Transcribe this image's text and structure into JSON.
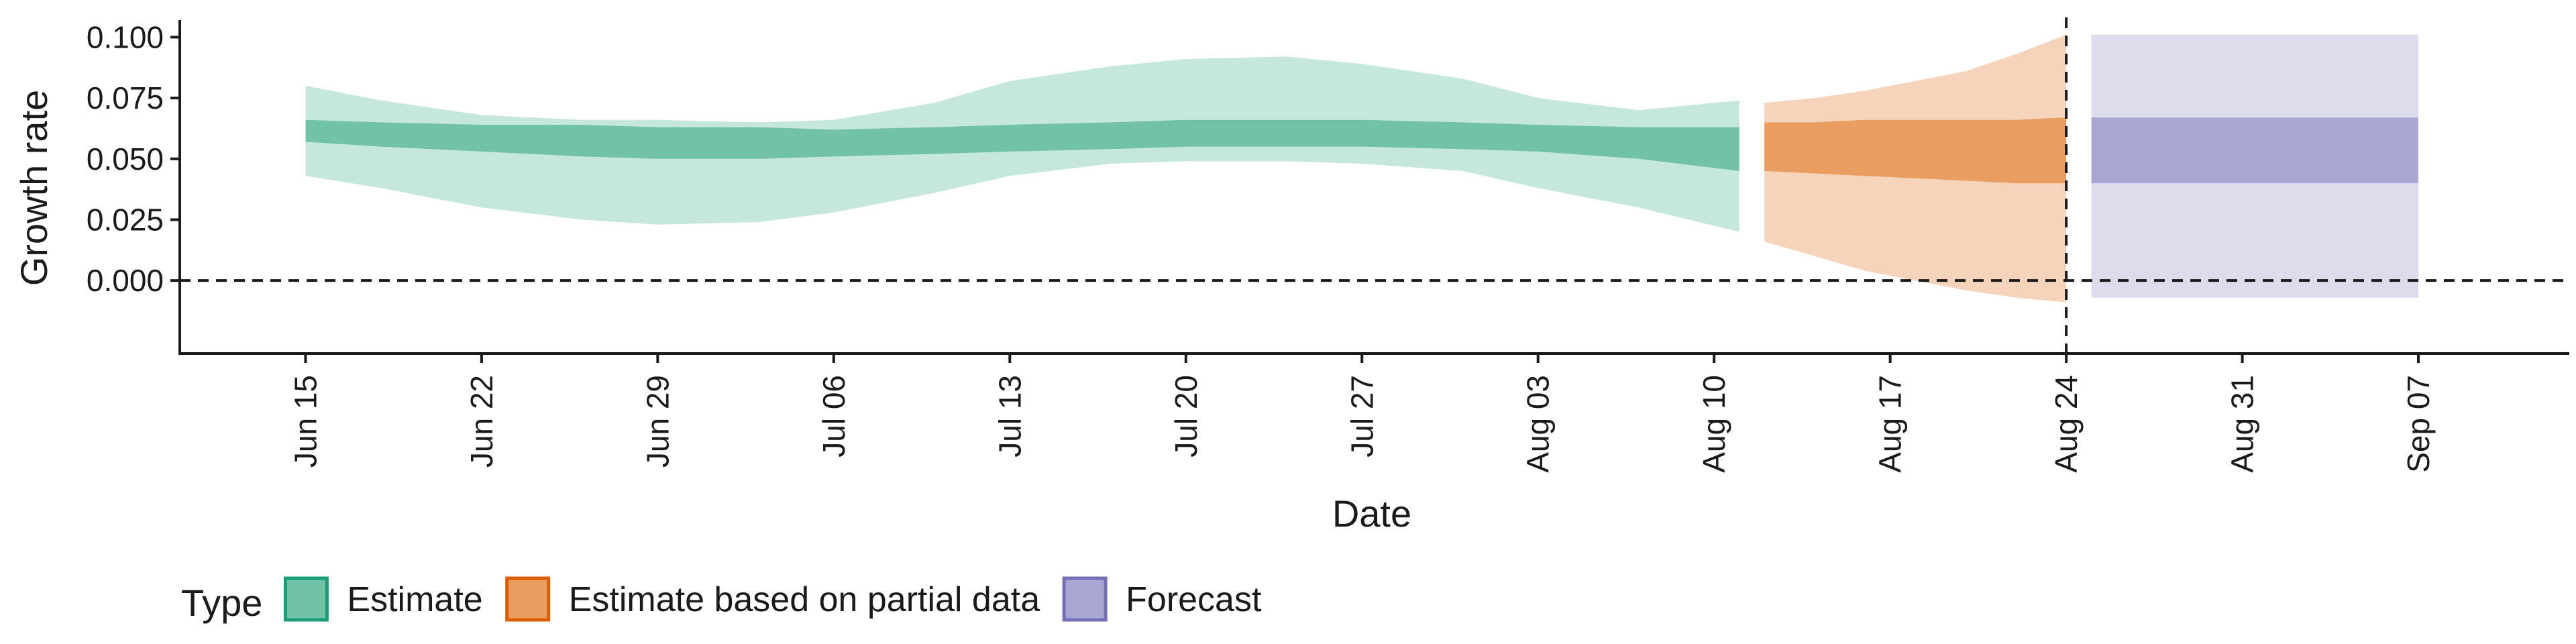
{
  "chart_data": {
    "type": "area",
    "xlabel": "Date",
    "ylabel": "Growth rate",
    "ylim": [
      -0.03,
      0.107
    ],
    "xlim": [
      "2023-06-10",
      "2023-09-13"
    ],
    "x_tick_labels": [
      "Jun 15",
      "Jun 22",
      "Jun 29",
      "Jul 06",
      "Jul 13",
      "Jul 20",
      "Jul 27",
      "Aug 03",
      "Aug 10",
      "Aug 17",
      "Aug 24",
      "Aug 31",
      "Sep 07"
    ],
    "x_ticks": [
      "2023-06-15",
      "2023-06-22",
      "2023-06-29",
      "2023-07-06",
      "2023-07-13",
      "2023-07-20",
      "2023-07-27",
      "2023-08-03",
      "2023-08-10",
      "2023-08-17",
      "2023-08-24",
      "2023-08-31",
      "2023-09-07"
    ],
    "y_ticks": [
      0.0,
      0.025,
      0.05,
      0.075,
      0.1
    ],
    "y_tick_labels": [
      "0.000",
      "0.025",
      "0.050",
      "0.075",
      "0.100"
    ],
    "reference_lines": {
      "horizontal_y": 0.0,
      "vertical_date": "2023-08-24",
      "style": "dashed"
    },
    "legend": {
      "title": "Type",
      "position": "bottom-left"
    },
    "series": [
      {
        "name": "Estimate",
        "color_inner": "#72c2a8",
        "color_outer": "#c5e7dc",
        "dates": [
          "2023-06-15",
          "2023-06-18",
          "2023-06-22",
          "2023-06-26",
          "2023-06-29",
          "2023-07-03",
          "2023-07-06",
          "2023-07-10",
          "2023-07-13",
          "2023-07-17",
          "2023-07-20",
          "2023-07-24",
          "2023-07-27",
          "2023-07-31",
          "2023-08-03",
          "2023-08-07",
          "2023-08-11"
        ],
        "outer_upper": [
          0.08,
          0.074,
          0.068,
          0.066,
          0.066,
          0.065,
          0.066,
          0.073,
          0.082,
          0.088,
          0.091,
          0.092,
          0.089,
          0.083,
          0.075,
          0.07,
          0.074
        ],
        "inner_upper": [
          0.066,
          0.065,
          0.064,
          0.064,
          0.063,
          0.063,
          0.062,
          0.063,
          0.064,
          0.065,
          0.066,
          0.066,
          0.066,
          0.065,
          0.064,
          0.063,
          0.063
        ],
        "inner_lower": [
          0.057,
          0.055,
          0.053,
          0.051,
          0.05,
          0.05,
          0.051,
          0.052,
          0.053,
          0.054,
          0.055,
          0.055,
          0.055,
          0.054,
          0.053,
          0.05,
          0.045
        ],
        "outer_lower": [
          0.043,
          0.038,
          0.03,
          0.025,
          0.023,
          0.024,
          0.028,
          0.036,
          0.043,
          0.048,
          0.049,
          0.049,
          0.048,
          0.045,
          0.038,
          0.03,
          0.02
        ]
      },
      {
        "name": "Estimate based on partial data",
        "color_inner": "#e99d60",
        "color_outer": "#f5d4bb",
        "dates": [
          "2023-08-12",
          "2023-08-14",
          "2023-08-16",
          "2023-08-18",
          "2023-08-20",
          "2023-08-22",
          "2023-08-24"
        ],
        "outer_upper": [
          0.073,
          0.075,
          0.078,
          0.082,
          0.086,
          0.093,
          0.101
        ],
        "inner_upper": [
          0.065,
          0.065,
          0.066,
          0.066,
          0.066,
          0.066,
          0.067
        ],
        "inner_lower": [
          0.045,
          0.044,
          0.043,
          0.042,
          0.041,
          0.04,
          0.04
        ],
        "outer_lower": [
          0.016,
          0.01,
          0.004,
          0.0,
          -0.004,
          -0.007,
          -0.009
        ]
      },
      {
        "name": "Forecast",
        "color_inner": "#a8a6d2",
        "color_outer": "#dcdcec",
        "dates": [
          "2023-08-25",
          "2023-09-07"
        ],
        "outer_upper": [
          0.101,
          0.101
        ],
        "inner_upper": [
          0.067,
          0.067
        ],
        "inner_lower": [
          0.04,
          0.04
        ],
        "outer_lower": [
          -0.007,
          -0.007
        ]
      }
    ]
  },
  "legend_items": [
    {
      "label": "Estimate",
      "fill": "#72c2a8",
      "stroke": "#1b9e77"
    },
    {
      "label": "Estimate based on partial data",
      "fill": "#e99d60",
      "stroke": "#d95f02"
    },
    {
      "label": "Forecast",
      "fill": "#a8a6d2",
      "stroke": "#7570b3"
    }
  ]
}
